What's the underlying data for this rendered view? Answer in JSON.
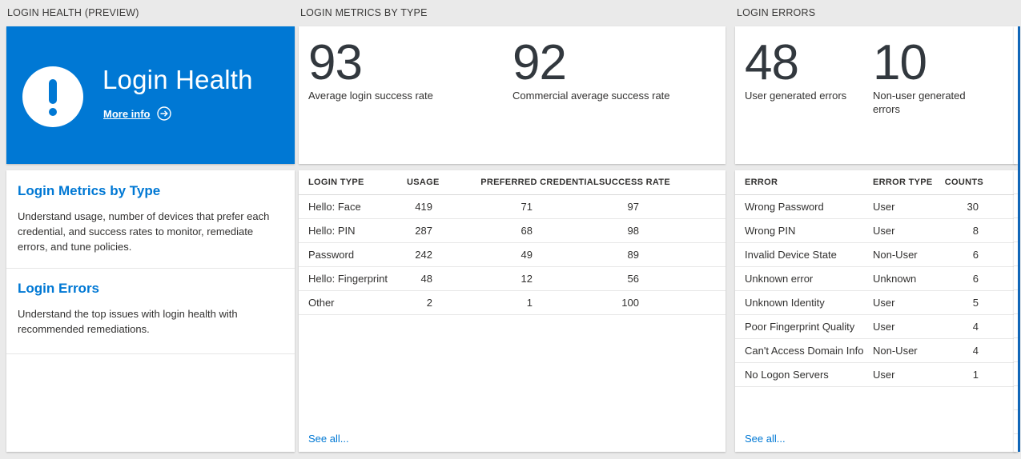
{
  "colors": {
    "accent": "#0078d4",
    "background": "#eaeaea",
    "text": "#323130",
    "link": "#0078d4",
    "tile": "#ffffff"
  },
  "columns": {
    "health": {
      "section_title": "LOGIN HEALTH (PREVIEW)",
      "hero": {
        "title": "Login Health",
        "more_info_label": "More info",
        "icons": {
          "badge": "exclamation-circle",
          "more_info": "arrow-right-circle"
        }
      },
      "cards": [
        {
          "title": "Login Metrics by Type",
          "description": "Understand usage, number of devices that prefer each credential, and success rates to monitor, remediate errors, and tune policies."
        },
        {
          "title": "Login Errors",
          "description": "Understand the top issues with login health with recommended remediations."
        }
      ]
    },
    "metrics": {
      "section_title": "LOGIN METRICS BY TYPE",
      "stats": [
        {
          "value": "93",
          "label": "Average login success rate"
        },
        {
          "value": "92",
          "label": "Commercial average success rate"
        }
      ],
      "table": {
        "headers": [
          "LOGIN TYPE",
          "USAGE",
          "PREFERRED CREDENTIAL",
          "SUCCESS RATE"
        ],
        "rows": [
          [
            "Hello: Face",
            "419",
            "71",
            "97"
          ],
          [
            "Hello: PIN",
            "287",
            "68",
            "98"
          ],
          [
            "Password",
            "242",
            "49",
            "89"
          ],
          [
            "Hello: Fingerprint",
            "48",
            "12",
            "56"
          ],
          [
            "Other",
            "2",
            "1",
            "100"
          ]
        ]
      },
      "see_all_label": "See all..."
    },
    "errors": {
      "section_title": "LOGIN ERRORS",
      "stats": [
        {
          "value": "48",
          "label": "User generated errors"
        },
        {
          "value": "10",
          "label": "Non-user generated errors"
        }
      ],
      "table": {
        "headers": [
          "ERROR",
          "ERROR TYPE",
          "COUNTS"
        ],
        "rows": [
          [
            "Wrong Password",
            "User",
            "30"
          ],
          [
            "Wrong PIN",
            "User",
            "8"
          ],
          [
            "Invalid Device State",
            "Non-User",
            "6"
          ],
          [
            "Unknown error",
            "Unknown",
            "6"
          ],
          [
            "Unknown Identity",
            "User",
            "5"
          ],
          [
            "Poor Fingerprint Quality",
            "User",
            "4"
          ],
          [
            "Can't Access Domain Info",
            "Non-User",
            "4"
          ],
          [
            "No Logon Servers",
            "User",
            "1"
          ]
        ]
      },
      "see_all_label": "See all..."
    }
  }
}
